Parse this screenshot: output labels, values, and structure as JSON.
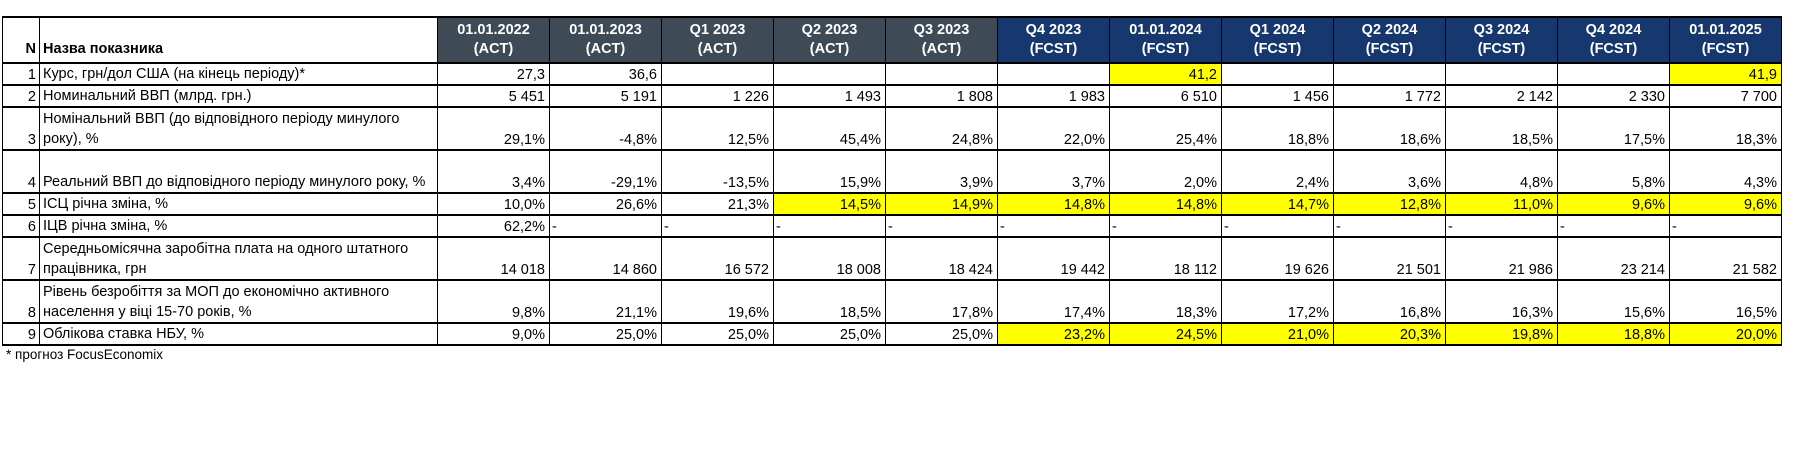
{
  "table": {
    "corner": {
      "number_header": "N",
      "name_header": "Назва показника"
    },
    "columns": [
      {
        "period": "01.01.2022",
        "tag": "(ACT)",
        "type": "act"
      },
      {
        "period": "01.01.2023",
        "tag": "(ACT)",
        "type": "act"
      },
      {
        "period": "Q1 2023",
        "tag": "(ACT)",
        "type": "act"
      },
      {
        "period": "Q2 2023",
        "tag": "(ACT)",
        "type": "act"
      },
      {
        "period": "Q3 2023",
        "tag": "(ACT)",
        "type": "act"
      },
      {
        "period": "Q4 2023",
        "tag": "(FCST)",
        "type": "fcst"
      },
      {
        "period": "01.01.2024",
        "tag": "(FCST)",
        "type": "fcst"
      },
      {
        "period": "Q1 2024",
        "tag": "(FCST)",
        "type": "fcst"
      },
      {
        "period": "Q2 2024",
        "tag": "(FCST)",
        "type": "fcst"
      },
      {
        "period": "Q3 2024",
        "tag": "(FCST)",
        "type": "fcst"
      },
      {
        "period": "Q4 2024",
        "tag": "(FCST)",
        "type": "fcst"
      },
      {
        "period": "01.01.2025",
        "tag": "(FCST)",
        "type": "fcst"
      }
    ],
    "rows": [
      {
        "n": "1",
        "label": "Курс, грн/дол США (на кінець періоду)*",
        "size": "single",
        "values": [
          "27,3",
          "36,6",
          "",
          "",
          "",
          "",
          "41,2",
          "",
          "",
          "",
          "",
          "41,9"
        ],
        "highlighted_columns": [
          6,
          11
        ]
      },
      {
        "n": "2",
        "label": "Номинальний ВВП (млрд. грн.)",
        "size": "single",
        "values": [
          "5 451",
          "5 191",
          "1 226",
          "1 493",
          "1 808",
          "1 983",
          "6 510",
          "1 456",
          "1 772",
          "2 142",
          "2 330",
          "7 700"
        ],
        "highlighted_columns": []
      },
      {
        "n": "3",
        "label": "Номінальний ВВП (до відповідного періоду минулого року), %",
        "size": "double",
        "values": [
          "29,1%",
          "-4,8%",
          "12,5%",
          "45,4%",
          "24,8%",
          "22,0%",
          "25,4%",
          "18,8%",
          "18,6%",
          "18,5%",
          "17,5%",
          "18,3%"
        ],
        "highlighted_columns": []
      },
      {
        "n": "4",
        "label": "Реальний ВВП до відповідного періоду минулого року, %",
        "size": "double",
        "values": [
          "3,4%",
          "-29,1%",
          "-13,5%",
          "15,9%",
          "3,9%",
          "3,7%",
          "2,0%",
          "2,4%",
          "3,6%",
          "4,8%",
          "5,8%",
          "4,3%"
        ],
        "highlighted_columns": []
      },
      {
        "n": "5",
        "label": "ІСЦ річна зміна, %",
        "size": "single",
        "values": [
          "10,0%",
          "26,6%",
          "21,3%",
          "14,5%",
          "14,9%",
          "14,8%",
          "14,8%",
          "14,7%",
          "12,8%",
          "11,0%",
          "9,6%",
          "9,6%"
        ],
        "highlighted_columns": [
          3,
          4,
          5,
          6,
          7,
          8,
          9,
          10,
          11
        ]
      },
      {
        "n": "6",
        "label": "ІЦВ річна зміна, %",
        "size": "single",
        "values": [
          "62,2%",
          "-",
          "-",
          "-",
          "-",
          "-",
          "-",
          "-",
          "-",
          "-",
          "-",
          "-"
        ],
        "highlighted_columns": []
      },
      {
        "n": "7",
        "label": "Середньомісячна заробітна плата на одного штатного працівника, грн",
        "size": "double",
        "values": [
          "14 018",
          "14 860",
          "16 572",
          "18 008",
          "18 424",
          "19 442",
          "18 112",
          "19 626",
          "21 501",
          "21 986",
          "23 214",
          "21 582"
        ],
        "highlighted_columns": []
      },
      {
        "n": "8",
        "label": "Рівень безробіття за МОП до економічно активного населення у віці 15-70 років, %",
        "size": "double",
        "values": [
          "9,8%",
          "21,1%",
          "19,6%",
          "18,5%",
          "17,8%",
          "17,4%",
          "18,3%",
          "17,2%",
          "16,8%",
          "16,3%",
          "15,6%",
          "16,5%"
        ],
        "highlighted_columns": []
      },
      {
        "n": "9",
        "label": "Облікова ставка НБУ, %",
        "size": "single",
        "values": [
          "9,0%",
          "25,0%",
          "25,0%",
          "25,0%",
          "25,0%",
          "23,2%",
          "24,5%",
          "21,0%",
          "20,3%",
          "19,8%",
          "18,8%",
          "20,0%"
        ],
        "highlighted_columns": [
          5,
          6,
          7,
          8,
          9,
          10,
          11
        ]
      }
    ]
  },
  "footnote": "* прогноз FocusEconomix",
  "colors": {
    "act_header_bg": "#3F4A57",
    "fcst_header_bg": "#16386E",
    "highlight_bg": "#FFFF00",
    "header_text": "#FFFFFF",
    "grid": "#000000"
  }
}
